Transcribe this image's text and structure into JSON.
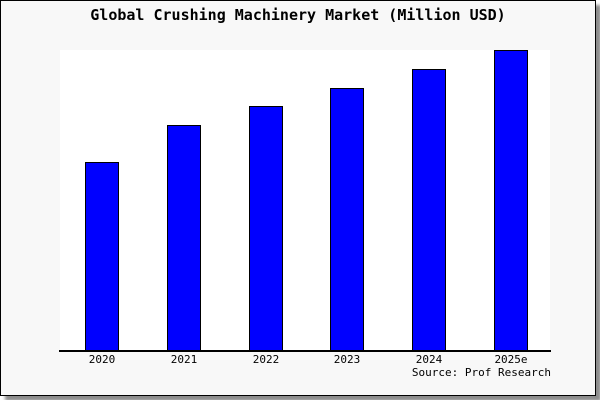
{
  "title": "Global Crushing Machinery Market (Million USD)",
  "source_note": "Source: Prof Research",
  "colors": {
    "canvas_background": "#f8f8f8",
    "plot_background": "#ffffff",
    "bar_fill": "#0000ff",
    "bar_border": "#000000",
    "axis": "#000000",
    "text": "#000000",
    "frame_border": "#000000",
    "shadow": "#8c8c8c"
  },
  "chart_data": {
    "type": "bar",
    "title": "Global Crushing Machinery Market (Million USD)",
    "categories": [
      "2020",
      "2021",
      "2022",
      "2023",
      "2024",
      "2025e"
    ],
    "values": [
      62.8,
      75.1,
      81.4,
      87.4,
      93.7,
      100
    ],
    "value_note": "no numeric axis shown; values estimated relative to tallest bar (2025e = 100)",
    "xlabel": "",
    "ylabel": "",
    "ylim": [
      0,
      100
    ],
    "grid": "off",
    "legend": "none",
    "bar_count": 6
  }
}
